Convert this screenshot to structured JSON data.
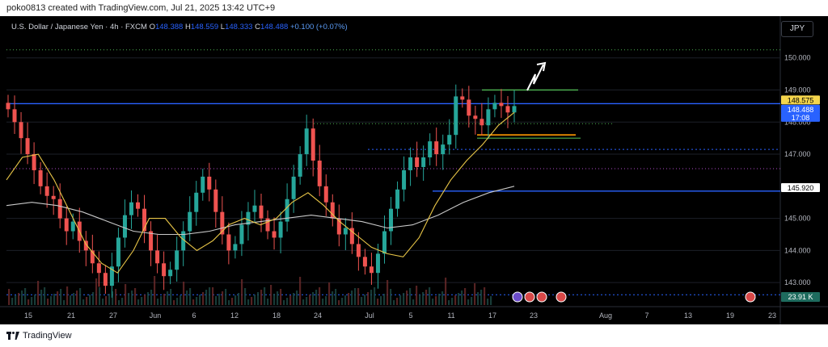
{
  "caption": "poko0813 created with TradingView.com, Jul 21, 2025 13:42 UTC+9",
  "legend": {
    "symbol": "U.S. Dollar / Japanese Yen · 4h · FXCM",
    "o_label": "O",
    "o_value": "148.388",
    "h_label": "H",
    "h_value": "148.559",
    "l_label": "L",
    "l_value": "148.333",
    "c_label": "C",
    "c_value": "148.488",
    "change": "+0.100 (+0.07%)"
  },
  "currency": "JPY",
  "footer": {
    "brand": "TradingView"
  },
  "colors": {
    "up": "#26a69a",
    "down": "#ef5350",
    "ma_fast": "#e8c547",
    "ma_slow": "#c9c9c9",
    "level": "#2962ff",
    "green_line": "#4caf50",
    "orange_line": "#ff9800",
    "purple_dots": "#b04cc9",
    "price_tag": "#2962ff",
    "highlight_tag": "#f5d64c"
  },
  "chart_data": {
    "type": "candlestick",
    "y_ticks": [
      "150.000",
      "149.000",
      "148.000",
      "147.000",
      "145.000",
      "144.000",
      "143.000"
    ],
    "x_ticks": [
      "15",
      "21",
      "27",
      "Jun",
      "6",
      "12",
      "18",
      "24",
      "Jul",
      "5",
      "11",
      "17",
      "23",
      "Aug",
      "7",
      "13",
      "19",
      "23"
    ],
    "ylim": [
      142.3,
      151.2
    ],
    "price_labels": [
      {
        "text": "148.575",
        "value": 148.575,
        "style": "highlight"
      },
      {
        "text": "148.488",
        "value": 148.488,
        "style": "current"
      },
      {
        "text": "17:08",
        "value": 148.488,
        "style": "countdown"
      },
      {
        "text": "145.920",
        "value": 145.92,
        "style": "level"
      }
    ],
    "volume_label": "23.91 K",
    "horizontal_levels": [
      {
        "value": 150.25,
        "style": "green-dotted"
      },
      {
        "value": 148.575,
        "style": "blue-solid"
      },
      {
        "value": 147.95,
        "style": "green-dotted"
      },
      {
        "value": 147.15,
        "style": "blue-dotted"
      },
      {
        "value": 146.55,
        "style": "purple-dotted"
      },
      {
        "value": 145.85,
        "style": "blue-solid"
      },
      {
        "value": 142.62,
        "style": "blue-dotted"
      }
    ],
    "candles_close_path": [
      148.4,
      148.0,
      147.5,
      147.0,
      146.5,
      146.0,
      145.7,
      145.6,
      145.0,
      144.6,
      144.9,
      144.3,
      144.0,
      143.6,
      143.3,
      142.9,
      143.5,
      144.4,
      145.1,
      145.5,
      145.3,
      144.6,
      144.0,
      143.6,
      143.2,
      143.4,
      144.0,
      144.6,
      145.2,
      145.8,
      146.3,
      145.9,
      145.2,
      144.5,
      144.0,
      144.2,
      144.8,
      145.2,
      145.4,
      145.0,
      144.6,
      144.4,
      144.9,
      145.6,
      146.3,
      147.0,
      147.8,
      146.8,
      146.0,
      145.5,
      145.0,
      144.5,
      144.7,
      144.2,
      143.8,
      143.5,
      143.3,
      143.9,
      144.6,
      145.3,
      145.9,
      146.5,
      146.9,
      146.6,
      146.9,
      147.4,
      147.0,
      147.3,
      147.6,
      148.8,
      148.7,
      148.2,
      148.1,
      147.9,
      148.4,
      148.6,
      148.5,
      148.3,
      148.5
    ],
    "ma_fast_path": [
      146.2,
      146.9,
      147.0,
      146.2,
      145.2,
      144.2,
      143.6,
      143.3,
      144.0,
      145.0,
      145.0,
      144.4,
      144.0,
      144.3,
      144.8,
      145.0,
      144.8,
      145.0,
      145.5,
      145.8,
      145.4,
      144.9,
      144.5,
      144.1,
      143.9,
      143.8,
      144.4,
      145.4,
      146.2,
      146.8,
      147.3,
      147.9,
      148.3
    ],
    "ma_slow_path": [
      145.4,
      145.5,
      145.4,
      145.2,
      144.9,
      144.6,
      144.5,
      144.5,
      144.6,
      144.8,
      144.9,
      145.0,
      145.1,
      145.0,
      144.9,
      144.7,
      144.8,
      145.1,
      145.5,
      145.8,
      146.0
    ]
  }
}
